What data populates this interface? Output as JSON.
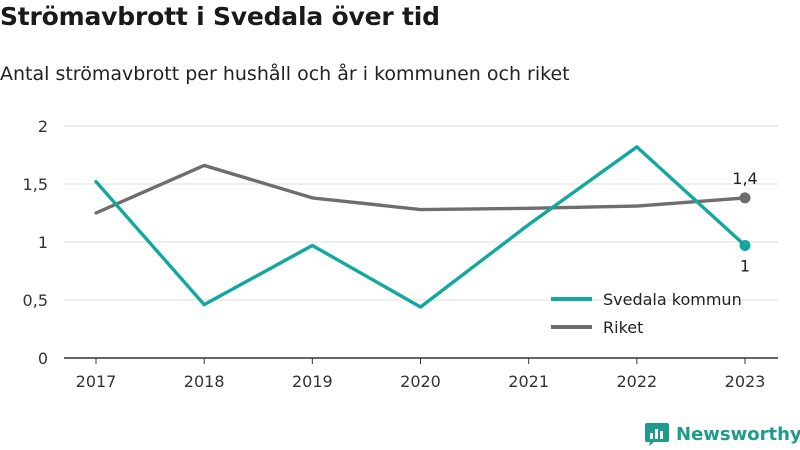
{
  "header": {
    "title": "Strömavbrott i Svedala över tid",
    "subtitle": "Antal strömavbrott per hushåll och år i kommunen och riket"
  },
  "brand": {
    "name": "Newsworthy",
    "icon": "newsworthy-logo-icon",
    "color": "#1e9a8e"
  },
  "chart_data": {
    "type": "line",
    "x": [
      "2017",
      "2018",
      "2019",
      "2020",
      "2021",
      "2022",
      "2023"
    ],
    "ylim": [
      0,
      2
    ],
    "yticks": [
      0,
      0.5,
      1,
      1.5,
      2
    ],
    "ytick_labels": [
      "0",
      "0,5",
      "1",
      "1,5",
      "2"
    ],
    "grid": true,
    "legend_position": "bottom-right",
    "series": [
      {
        "name": "Svedala kommun",
        "color": "#13a89e",
        "values": [
          1.52,
          0.46,
          0.97,
          0.44,
          1.15,
          1.82,
          0.97
        ],
        "end_label": "1",
        "end_label_position": "below"
      },
      {
        "name": "Riket",
        "color": "#6e6e6e",
        "values": [
          1.25,
          1.66,
          1.38,
          1.28,
          1.29,
          1.31,
          1.38
        ],
        "end_label": "1,4",
        "end_label_position": "above"
      }
    ]
  }
}
